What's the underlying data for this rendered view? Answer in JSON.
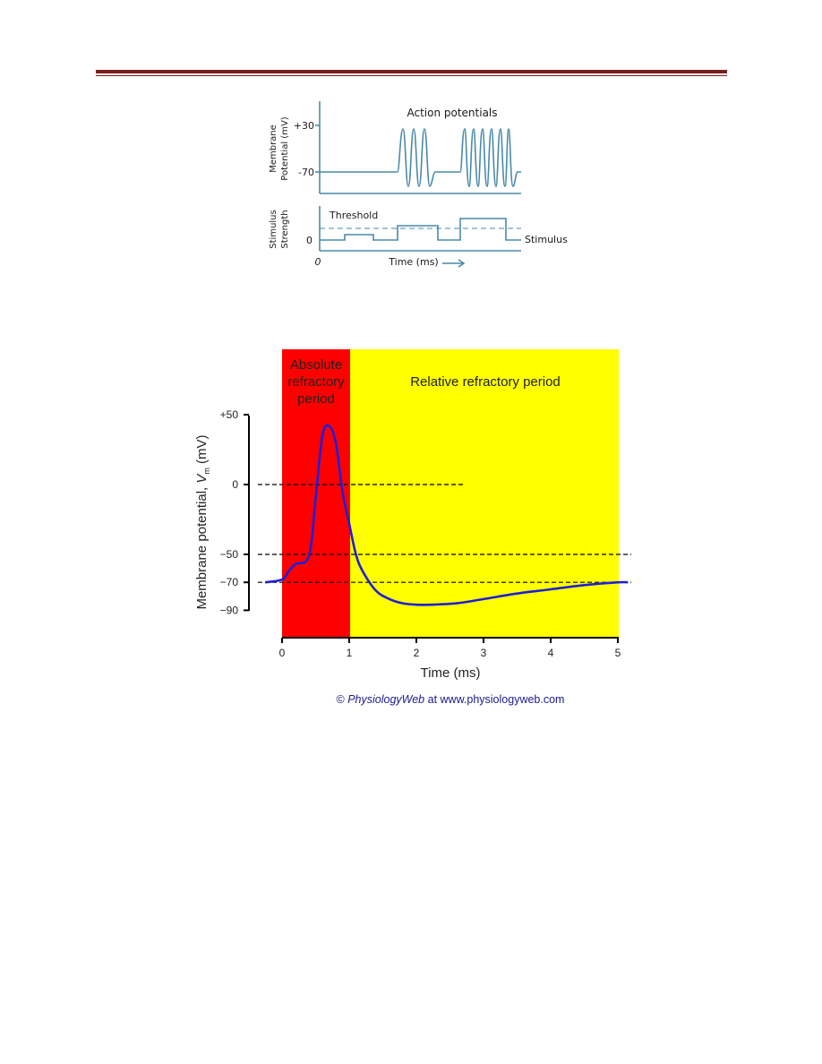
{
  "figure1": {
    "title": "Action potentials",
    "y_axis_label_line1": "Membrane",
    "y_axis_label_line2": "Potential (mV)",
    "tick_top": "+30",
    "tick_bottom": "-70",
    "stimulus_label_line1": "Stimulus",
    "stimulus_label_line2": "Strength",
    "threshold_label": "Threshold",
    "stimulus_zero": "0",
    "origin_label": "0",
    "x_axis_label": "Time (ms)",
    "stimulus_trace_label": "Stimulus",
    "line_color": "#4a8aa8"
  },
  "figure2": {
    "absolute_label": [
      "Absolute",
      "refractory",
      "period"
    ],
    "relative_label": "Relative refractory period",
    "credit_prefix": "© ",
    "credit_brand": "PhysiologyWeb",
    "credit_suffix": " at www.physiologyweb.com",
    "colors": {
      "absolute": "#ff0000",
      "relative": "#ffff00",
      "trace": "#1f1fd6",
      "credit": "#1a1a8a"
    }
  },
  "chart_data": {
    "type": "line",
    "title": "",
    "xlabel": "Time (ms)",
    "ylabel": "Membrane potential, Vm (mV)",
    "xlim": [
      0,
      5
    ],
    "ylim": [
      -90,
      50
    ],
    "x_ticks": [
      "0",
      "1",
      "2",
      "3",
      "4",
      "5"
    ],
    "y_ticks": [
      "+50",
      "0",
      "−50",
      "−70",
      "−90"
    ],
    "reference_lines": [
      {
        "y": 0,
        "x_end": 2.7
      },
      {
        "y": -50,
        "x_end": 5.2
      },
      {
        "y": -70,
        "x_end": 5.2
      }
    ],
    "regions": [
      {
        "label": "Absolute refractory period",
        "x": [
          0,
          1
        ]
      },
      {
        "label": "Relative refractory period",
        "x": [
          1,
          5
        ]
      }
    ],
    "series": [
      {
        "x": [
          -0.25,
          0,
          0.1,
          0.2,
          0.4,
          0.5,
          0.6,
          0.7,
          0.8,
          0.9,
          1.0,
          1.1,
          1.2,
          1.4,
          1.6,
          1.8,
          2.0,
          2.2,
          2.6,
          3.0,
          3.5,
          4.0,
          4.5,
          5.0,
          5.15
        ],
        "y": [
          -70,
          -68,
          -62,
          -57,
          -51,
          -10,
          35,
          42,
          30,
          -5,
          -28,
          -50,
          -62,
          -76,
          -82,
          -85,
          -86,
          -86,
          -85,
          -82,
          -78,
          -75,
          -72,
          -70,
          -70
        ]
      }
    ]
  }
}
